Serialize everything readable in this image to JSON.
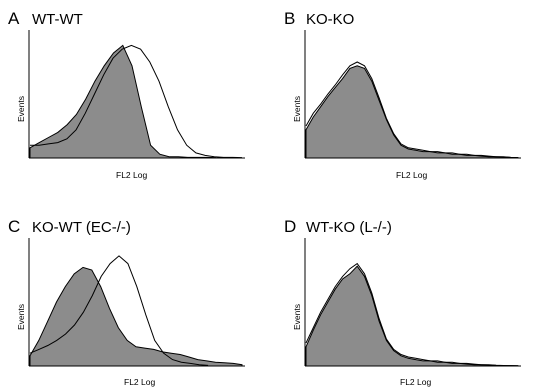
{
  "colors": {
    "filled": "#8c8c8c",
    "line": "#000000",
    "background": "#ffffff"
  },
  "chart_data": [
    {
      "type": "area",
      "panel_letter": "A",
      "title": "WT-WT",
      "xlabel": "FL2 Log",
      "ylabel": "Events",
      "x_scale": "log",
      "xlim": [
        0,
        1
      ],
      "ylim": [
        0,
        1
      ],
      "grid": false,
      "series": [
        {
          "style": "filled",
          "values": [
            0.08,
            0.12,
            0.16,
            0.2,
            0.26,
            0.34,
            0.46,
            0.6,
            0.72,
            0.82,
            0.88,
            0.72,
            0.4,
            0.1,
            0.03,
            0.01,
            0.01,
            0.005,
            0.005,
            0.005,
            0.003
          ]
        },
        {
          "style": "line",
          "values": [
            0.1,
            0.1,
            0.11,
            0.12,
            0.15,
            0.22,
            0.35,
            0.5,
            0.65,
            0.78,
            0.85,
            0.88,
            0.85,
            0.75,
            0.6,
            0.4,
            0.22,
            0.1,
            0.04,
            0.02,
            0.01,
            0.005,
            0.005,
            0.003
          ]
        }
      ]
    },
    {
      "type": "area",
      "panel_letter": "B",
      "title": "KO-KO",
      "xlabel": "FL2 Log",
      "ylabel": "Events",
      "x_scale": "log",
      "xlim": [
        0,
        1
      ],
      "ylim": [
        0,
        1
      ],
      "grid": false,
      "series": [
        {
          "style": "filled",
          "values": [
            0.22,
            0.32,
            0.4,
            0.48,
            0.55,
            0.62,
            0.7,
            0.72,
            0.7,
            0.6,
            0.45,
            0.3,
            0.18,
            0.1,
            0.07,
            0.06,
            0.05,
            0.05,
            0.04,
            0.04,
            0.03,
            0.03,
            0.02,
            0.02,
            0.015,
            0.01,
            0.01,
            0.008,
            0.005,
            0.003
          ]
        },
        {
          "style": "line",
          "values": [
            0.25,
            0.35,
            0.42,
            0.5,
            0.57,
            0.65,
            0.72,
            0.75,
            0.72,
            0.62,
            0.47,
            0.31,
            0.19,
            0.11,
            0.08,
            0.07,
            0.06,
            0.05,
            0.05,
            0.04,
            0.04,
            0.03,
            0.03,
            0.02,
            0.02,
            0.015,
            0.01,
            0.01,
            0.005,
            0.003
          ]
        }
      ]
    },
    {
      "type": "area",
      "panel_letter": "C",
      "title": "KO-WT (EC-/-)",
      "xlabel": "FL2 Log",
      "ylabel": "Events",
      "x_scale": "log",
      "xlim": [
        0,
        1
      ],
      "ylim": [
        0,
        1
      ],
      "grid": false,
      "series": [
        {
          "style": "filled",
          "values": [
            0.08,
            0.2,
            0.35,
            0.5,
            0.62,
            0.72,
            0.77,
            0.75,
            0.62,
            0.45,
            0.3,
            0.2,
            0.15,
            0.14,
            0.13,
            0.11,
            0.1,
            0.09,
            0.07,
            0.05,
            0.04,
            0.03,
            0.025,
            0.02,
            0.01
          ]
        },
        {
          "style": "line",
          "values": [
            0.1,
            0.13,
            0.16,
            0.2,
            0.25,
            0.32,
            0.42,
            0.55,
            0.7,
            0.8,
            0.86,
            0.8,
            0.62,
            0.4,
            0.2,
            0.1,
            0.05,
            0.03,
            0.02,
            0.01,
            0.005
          ]
        }
      ]
    },
    {
      "type": "area",
      "panel_letter": "D",
      "title": "WT-KO (L-/-)",
      "xlabel": "FL2 Log",
      "ylabel": "Events",
      "x_scale": "log",
      "xlim": [
        0,
        1
      ],
      "ylim": [
        0,
        1
      ],
      "grid": false,
      "series": [
        {
          "style": "filled",
          "values": [
            0.15,
            0.28,
            0.4,
            0.5,
            0.6,
            0.68,
            0.72,
            0.78,
            0.7,
            0.55,
            0.35,
            0.2,
            0.12,
            0.08,
            0.06,
            0.05,
            0.04,
            0.04,
            0.03,
            0.03,
            0.02,
            0.02,
            0.015,
            0.01,
            0.01,
            0.008,
            0.005,
            0.004,
            0.003,
            0.002
          ]
        },
        {
          "style": "line",
          "values": [
            0.18,
            0.3,
            0.42,
            0.52,
            0.62,
            0.7,
            0.76,
            0.8,
            0.72,
            0.57,
            0.37,
            0.21,
            0.13,
            0.09,
            0.07,
            0.06,
            0.05,
            0.04,
            0.04,
            0.03,
            0.03,
            0.02,
            0.02,
            0.015,
            0.01,
            0.01,
            0.006,
            0.004,
            0.003,
            0.002
          ]
        }
      ]
    }
  ]
}
